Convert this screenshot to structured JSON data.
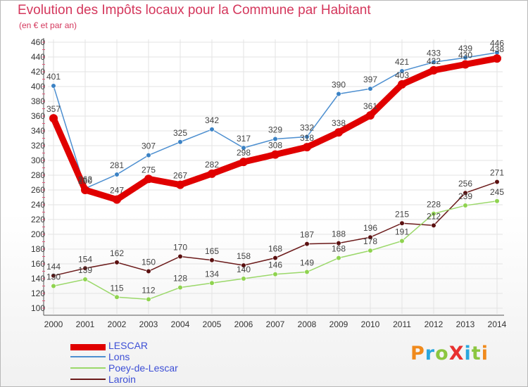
{
  "header": {
    "title": "Evolution des Impôts locaux pour la Commune par Habitant",
    "subtitle": "(en € et par an)"
  },
  "logo": {
    "text": "ProXiti",
    "colors": [
      "#f08a1c",
      "#2aa7de",
      "#8cc63f",
      "#e8312f",
      "#2aa7de",
      "#8cc63f",
      "#f08a1c"
    ]
  },
  "chart_data": {
    "type": "line",
    "title": "Evolution des Impôts locaux pour la Commune par Habitant",
    "subtitle": "(en € et par an)",
    "xlabel": "",
    "ylabel": "",
    "x": [
      "2000",
      "2001",
      "2002",
      "2003",
      "2004",
      "2005",
      "2006",
      "2007",
      "2008",
      "2009",
      "2010",
      "2011",
      "2012",
      "2013",
      "2014"
    ],
    "ylim": [
      100,
      460
    ],
    "yticks": [
      100,
      120,
      140,
      160,
      180,
      200,
      220,
      240,
      260,
      280,
      300,
      320,
      340,
      360,
      380,
      400,
      420,
      440,
      460
    ],
    "grid": true,
    "legend_position": "bottom-left",
    "series": [
      {
        "name": "LESCAR",
        "color": "#e00000",
        "values": [
          357,
          260,
          247,
          275,
          267,
          282,
          298,
          308,
          318,
          338,
          361,
          403,
          422,
          430,
          438
        ]
      },
      {
        "name": "Lons",
        "color": "#4d8fd0",
        "values": [
          401,
          262,
          281,
          307,
          325,
          342,
          317,
          329,
          332,
          390,
          397,
          421,
          433,
          439,
          446
        ]
      },
      {
        "name": "Poey-de-Lescar",
        "color": "#9bd86a",
        "values": [
          130,
          139,
          115,
          112,
          128,
          134,
          140,
          146,
          149,
          168,
          178,
          191,
          228,
          239,
          245
        ]
      },
      {
        "name": "Laroin",
        "color": "#6b1a1a",
        "values": [
          144,
          154,
          162,
          150,
          170,
          165,
          158,
          168,
          187,
          188,
          196,
          215,
          212,
          256,
          271
        ]
      }
    ]
  }
}
